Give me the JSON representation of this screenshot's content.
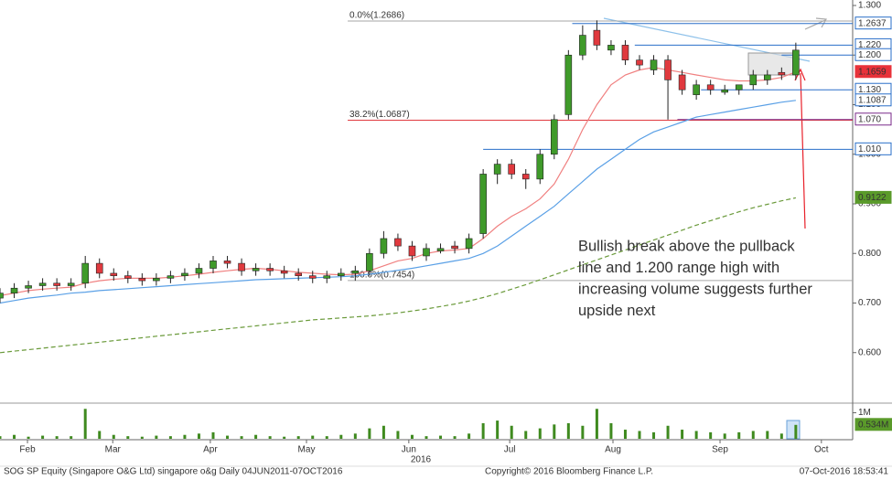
{
  "chart_data": {
    "type": "candlestick",
    "x": [
      0,
      3,
      6,
      9,
      12,
      15,
      18,
      21,
      24,
      27,
      30,
      33,
      36,
      39,
      42,
      45,
      48,
      51,
      54,
      57,
      60,
      63,
      66,
      69,
      72,
      75,
      78,
      81,
      84,
      87,
      90,
      93,
      96,
      99,
      102,
      105,
      108,
      111,
      114,
      117,
      120,
      123,
      126,
      129,
      132,
      135,
      138,
      141,
      144,
      147,
      150,
      153,
      156,
      159,
      162,
      165,
      168
    ],
    "xlim": [
      0,
      180
    ],
    "xticks": [
      {
        "value": 5.8,
        "label": "Feb"
      },
      {
        "value": 23.8,
        "label": "Mar"
      },
      {
        "value": 44.4,
        "label": "Apr"
      },
      {
        "value": 64.7,
        "label": "May"
      },
      {
        "value": 86.3,
        "label": "Jun"
      },
      {
        "value": 107.6,
        "label": "Jul"
      },
      {
        "value": 129.4,
        "label": "Aug"
      },
      {
        "value": 152,
        "label": "Sep"
      },
      {
        "value": 173.4,
        "label": "Oct"
      }
    ],
    "year_label": "2016",
    "ylim": [
      0.5,
      1.3
    ],
    "yticks": [
      {
        "value": 0.6,
        "label": "0.600"
      },
      {
        "value": 0.7,
        "label": "0.700"
      },
      {
        "value": 0.8,
        "label": "0.800"
      },
      {
        "value": 0.9,
        "label": "0.900"
      },
      {
        "value": 1.0,
        "label": "1.000"
      },
      {
        "value": 1.1,
        "label": "1.100"
      },
      {
        "value": 1.2,
        "label": "1.200"
      },
      {
        "value": 1.3,
        "label": "1.300"
      }
    ],
    "open": [
      0.71,
      0.72,
      0.73,
      0.735,
      0.74,
      0.735,
      0.74,
      0.78,
      0.76,
      0.755,
      0.75,
      0.745,
      0.75,
      0.755,
      0.76,
      0.77,
      0.785,
      0.78,
      0.765,
      0.77,
      0.765,
      0.76,
      0.755,
      0.75,
      0.755,
      0.76,
      0.765,
      0.8,
      0.83,
      0.815,
      0.795,
      0.805,
      0.815,
      0.81,
      0.84,
      0.96,
      0.98,
      0.96,
      0.95,
      1.0,
      1.08,
      1.2,
      1.25,
      1.21,
      1.22,
      1.19,
      1.17,
      1.19,
      1.16,
      1.12,
      1.14,
      1.125,
      1.13,
      1.14,
      1.15,
      1.165,
      1.16
    ],
    "high": [
      0.73,
      0.74,
      0.745,
      0.75,
      0.75,
      0.75,
      0.795,
      0.79,
      0.77,
      0.765,
      0.76,
      0.76,
      0.765,
      0.77,
      0.78,
      0.795,
      0.795,
      0.79,
      0.78,
      0.78,
      0.775,
      0.77,
      0.765,
      0.765,
      0.77,
      0.775,
      0.81,
      0.845,
      0.84,
      0.825,
      0.82,
      0.82,
      0.825,
      0.84,
      0.97,
      0.99,
      0.99,
      0.97,
      1.01,
      1.08,
      1.21,
      1.26,
      1.27,
      1.23,
      1.23,
      1.2,
      1.2,
      1.2,
      1.17,
      1.15,
      1.15,
      1.14,
      1.14,
      1.17,
      1.17,
      1.175,
      1.225
    ],
    "low": [
      0.7,
      0.71,
      0.72,
      0.725,
      0.725,
      0.725,
      0.73,
      0.75,
      0.745,
      0.74,
      0.735,
      0.735,
      0.74,
      0.745,
      0.75,
      0.76,
      0.77,
      0.755,
      0.755,
      0.755,
      0.75,
      0.745,
      0.74,
      0.74,
      0.745,
      0.745,
      0.755,
      0.79,
      0.805,
      0.785,
      0.785,
      0.8,
      0.8,
      0.8,
      0.83,
      0.94,
      0.95,
      0.93,
      0.94,
      0.99,
      1.07,
      1.19,
      1.21,
      1.2,
      1.18,
      1.17,
      1.16,
      1.07,
      1.12,
      1.11,
      1.12,
      1.12,
      1.12,
      1.13,
      1.14,
      1.15,
      1.15
    ],
    "close": [
      0.72,
      0.73,
      0.735,
      0.74,
      0.735,
      0.74,
      0.78,
      0.76,
      0.755,
      0.75,
      0.745,
      0.75,
      0.755,
      0.76,
      0.77,
      0.785,
      0.78,
      0.765,
      0.77,
      0.765,
      0.76,
      0.755,
      0.75,
      0.755,
      0.76,
      0.765,
      0.8,
      0.83,
      0.815,
      0.795,
      0.81,
      0.81,
      0.81,
      0.83,
      0.96,
      0.98,
      0.96,
      0.95,
      1.0,
      1.07,
      1.2,
      1.24,
      1.22,
      1.22,
      1.19,
      1.18,
      1.19,
      1.15,
      1.13,
      1.14,
      1.13,
      1.13,
      1.14,
      1.16,
      1.16,
      1.16,
      1.21
    ],
    "up_color": "#3f9a2a",
    "down_color": "#e0393e",
    "moving_averages": [
      {
        "color": "#f08080",
        "dash": false,
        "values": [
          0.715,
          0.72,
          0.725,
          0.728,
          0.73,
          0.732,
          0.74,
          0.745,
          0.748,
          0.75,
          0.75,
          0.75,
          0.752,
          0.755,
          0.758,
          0.762,
          0.765,
          0.768,
          0.77,
          0.768,
          0.765,
          0.762,
          0.76,
          0.758,
          0.757,
          0.758,
          0.765,
          0.775,
          0.785,
          0.79,
          0.8,
          0.805,
          0.807,
          0.81,
          0.83,
          0.855,
          0.875,
          0.89,
          0.91,
          0.94,
          0.99,
          1.05,
          1.1,
          1.14,
          1.16,
          1.17,
          1.175,
          1.17,
          1.165,
          1.16,
          1.155,
          1.15,
          1.148,
          1.148,
          1.15,
          1.155,
          1.1659
        ]
      },
      {
        "color": "#5aa0e6",
        "dash": false,
        "values": [
          0.7,
          0.705,
          0.71,
          0.713,
          0.716,
          0.72,
          0.722,
          0.725,
          0.727,
          0.729,
          0.731,
          0.733,
          0.735,
          0.737,
          0.739,
          0.741,
          0.743,
          0.745,
          0.747,
          0.748,
          0.749,
          0.75,
          0.751,
          0.752,
          0.753,
          0.755,
          0.758,
          0.762,
          0.766,
          0.77,
          0.775,
          0.78,
          0.785,
          0.79,
          0.8,
          0.815,
          0.835,
          0.855,
          0.875,
          0.895,
          0.92,
          0.945,
          0.97,
          0.99,
          1.01,
          1.03,
          1.045,
          1.055,
          1.065,
          1.075,
          1.08,
          1.085,
          1.09,
          1.095,
          1.1,
          1.105,
          1.1087
        ]
      },
      {
        "color": "#6a9a3a",
        "dash": true,
        "values": [
          0.6,
          0.603,
          0.606,
          0.609,
          0.612,
          0.615,
          0.618,
          0.621,
          0.624,
          0.627,
          0.63,
          0.633,
          0.636,
          0.639,
          0.642,
          0.645,
          0.648,
          0.651,
          0.654,
          0.657,
          0.66,
          0.663,
          0.666,
          0.668,
          0.67,
          0.672,
          0.674,
          0.677,
          0.68,
          0.684,
          0.688,
          0.693,
          0.698,
          0.704,
          0.711,
          0.719,
          0.728,
          0.737,
          0.747,
          0.757,
          0.767,
          0.777,
          0.787,
          0.797,
          0.807,
          0.817,
          0.827,
          0.837,
          0.847,
          0.857,
          0.866,
          0.875,
          0.884,
          0.892,
          0.899,
          0.906,
          0.9122
        ]
      }
    ],
    "fib_levels": [
      {
        "value": 1.2686,
        "label": "0.0%(1.2686)",
        "color": "#a6a6a6",
        "from": 73.4
      },
      {
        "value": 1.0687,
        "label": "38.2%(1.0687)",
        "color": "#e0393e",
        "from": 73.4
      },
      {
        "value": 0.7454,
        "label": "100.0%(0.7454)",
        "color": "#a6a6a6",
        "from": 73.4
      }
    ],
    "price_tags": [
      {
        "value": 1.2637,
        "label": "1.2637",
        "color": "#2a6fc9",
        "filled": false,
        "line_from": 120.8
      },
      {
        "value": 1.22,
        "label": "1.220",
        "color": "#2a6fc9",
        "filled": false,
        "line_from": 134
      },
      {
        "value": 1.2,
        "label": "1.200",
        "color": "#2a6fc9",
        "filled": false,
        "line_from": 165
      },
      {
        "value": 1.1659,
        "label": "1.1659",
        "color": "#e8323a",
        "filled": true
      },
      {
        "value": 1.13,
        "label": "1.130",
        "color": "#2a6fc9",
        "filled": false,
        "line_from": 148
      },
      {
        "value": 1.1087,
        "label": "1.1087",
        "color": "#2a6fc9",
        "filled": false
      },
      {
        "value": 1.07,
        "label": "1.070",
        "color": "#7a2a8a",
        "filled": false,
        "line_from": 143
      },
      {
        "value": 1.01,
        "label": "1.010",
        "color": "#2a6fc9",
        "filled": false,
        "line_from": 102
      },
      {
        "value": 0.9122,
        "label": "0.9122",
        "color": "#5a9a2a",
        "filled": true
      }
    ],
    "volume": {
      "values": [
        0.1,
        0.15,
        0.08,
        0.12,
        0.1,
        0.1,
        1.15,
        0.3,
        0.15,
        0.1,
        0.08,
        0.12,
        0.1,
        0.15,
        0.2,
        0.25,
        0.12,
        0.1,
        0.15,
        0.1,
        0.08,
        0.1,
        0.12,
        0.1,
        0.15,
        0.2,
        0.4,
        0.5,
        0.3,
        0.15,
        0.1,
        0.12,
        0.1,
        0.2,
        0.6,
        0.7,
        0.5,
        0.3,
        0.4,
        0.55,
        0.6,
        0.5,
        1.15,
        0.6,
        0.35,
        0.3,
        0.25,
        0.5,
        0.35,
        0.3,
        0.25,
        0.2,
        0.25,
        0.3,
        0.3,
        0.2,
        0.534
      ],
      "color": "#3f8a1f",
      "ylim": [
        0,
        1.3
      ],
      "yticks": [
        {
          "value": 1,
          "label": "1M"
        }
      ],
      "tag": {
        "value": 0.534,
        "label": "0.534M",
        "color": "#5a9a2a"
      }
    },
    "annotation": [
      "Bullish break above the pullback",
      "line and 1.200 range high with",
      "increasing volume suggests further",
      "upside next"
    ],
    "annotation_color": "#e8202a",
    "footer": {
      "left": "SOG SP Equity (Singapore O&G Ltd) singapore o&g  Daily 04JUN2011-07OCT2016",
      "center": "Copyright© 2016 Bloomberg Finance L.P.",
      "right": "07-Oct-2016 18:53:41"
    }
  }
}
